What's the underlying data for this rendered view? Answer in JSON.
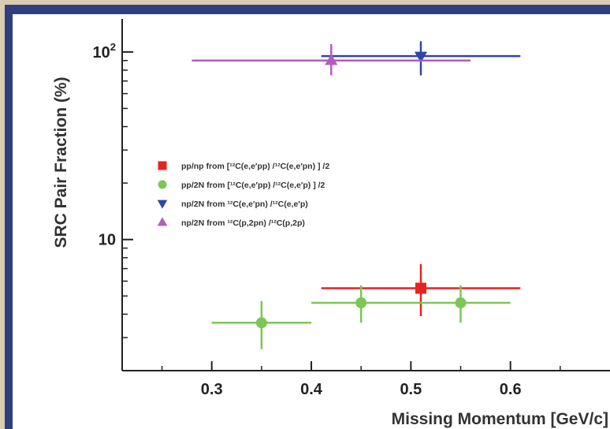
{
  "colors": {
    "frame": "#2f3f7f",
    "pp_np": "#e8221c",
    "pp_2N": "#7cc656",
    "np_2N_e": "#2f45a8",
    "np_2N_p": "#b35cc0"
  },
  "chart_data": {
    "type": "scatter",
    "xlabel": "Missing Momentum [GeV/c]",
    "ylabel": "SRC Pair Fraction (%)",
    "xlim": [
      0.21,
      0.7
    ],
    "ylim": [
      2.0,
      150
    ],
    "yscale": "log",
    "xticks": [
      "0.3",
      "0.4",
      "0.5",
      "0.6"
    ],
    "yticks": [
      {
        "value": 10,
        "base": "10",
        "exp": ""
      },
      {
        "value": 100,
        "base": "10",
        "exp": "2"
      }
    ],
    "legend_position": "center-left",
    "series": [
      {
        "name": "pp/np from [¹²C(e,e′pp) /¹²C(e,e′pn) ] /2",
        "marker": "square",
        "color": "#e8221c",
        "points": [
          {
            "x": 0.51,
            "y": 5.5,
            "xerr": [
              0.41,
              0.61
            ],
            "yerr": [
              3.9,
              7.4
            ]
          }
        ]
      },
      {
        "name": "pp/2N from [¹²C(e,e′pp) /¹²C(e,e′p) ] /2",
        "marker": "circle",
        "color": "#7cc656",
        "points": [
          {
            "x": 0.35,
            "y": 3.6,
            "xerr": [
              0.3,
              0.4
            ],
            "yerr": [
              2.6,
              4.7
            ]
          },
          {
            "x": 0.45,
            "y": 4.6,
            "xerr": [
              0.4,
              0.5
            ],
            "yerr": [
              3.6,
              5.7
            ]
          },
          {
            "x": 0.55,
            "y": 4.6,
            "xerr": [
              0.5,
              0.6
            ],
            "yerr": [
              3.6,
              5.7
            ]
          }
        ]
      },
      {
        "name": "np/2N from ¹²C(e,e′pn) /¹²C(e,e′p)",
        "marker": "triangle-down",
        "color": "#2f45a8",
        "points": [
          {
            "x": 0.51,
            "y": 95,
            "xerr": [
              0.41,
              0.61
            ],
            "yerr": [
              75,
              114
            ]
          }
        ]
      },
      {
        "name": "np/2N from ¹²C(p,2pn) /¹²C(p,2p)",
        "marker": "triangle-up",
        "color": "#b35cc0",
        "points": [
          {
            "x": 0.42,
            "y": 90,
            "xerr": [
              0.28,
              0.56
            ],
            "yerr": [
              75,
              110
            ]
          }
        ]
      }
    ]
  }
}
